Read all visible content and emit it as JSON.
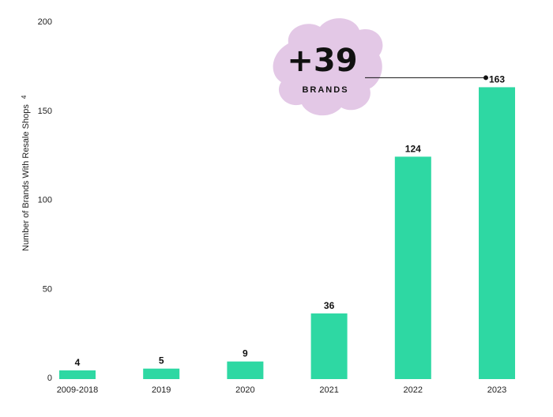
{
  "chart_data": {
    "type": "bar",
    "categories": [
      "2009-2018",
      "2019",
      "2020",
      "2021",
      "2022",
      "2023"
    ],
    "values": [
      4,
      5,
      9,
      36,
      124,
      163
    ],
    "data_labels": [
      "4",
      "5",
      "9",
      "36",
      "124",
      "163"
    ],
    "ylabel": "Number of Brands With Resale Shops",
    "ylabel_superscript": "4",
    "ylim": [
      0,
      200
    ],
    "yticks": [
      0,
      50,
      100,
      150,
      200
    ],
    "grid": false,
    "bar_color": "#2ED8A3",
    "callout": {
      "value": "+39",
      "label": "BRANDS",
      "color": "#E3C8E6",
      "points_to_category": "2023"
    }
  }
}
